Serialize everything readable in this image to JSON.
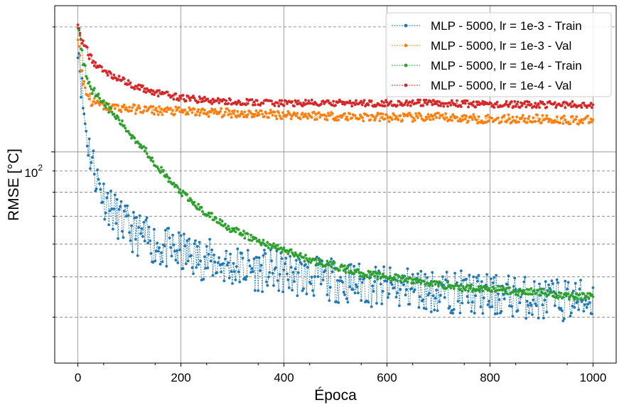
{
  "chart_data": {
    "type": "line",
    "title": "",
    "xlabel": "Época",
    "ylabel": "RMSE [°C]",
    "xlim": [
      -45,
      1045
    ],
    "ylim": [
      31,
      225
    ],
    "y_scale": "log",
    "grid": true,
    "x_ticks": [
      {
        "value": 0,
        "label": "0"
      },
      {
        "value": 200,
        "label": "200"
      },
      {
        "value": 400,
        "label": "400"
      },
      {
        "value": 600,
        "label": "600"
      },
      {
        "value": 800,
        "label": "800"
      },
      {
        "value": 1000,
        "label": "1000"
      }
    ],
    "y_major_tick": {
      "value": 100,
      "base": "10",
      "exponent": "2"
    },
    "y_minor_ticks": [
      40,
      50,
      60,
      70,
      80,
      90,
      200
    ],
    "legend_position": "top-right",
    "series": [
      {
        "name": "MLP - 5000, lr = 1e-3 - Train",
        "color": "#1f77b4",
        "x": [
          0,
          2,
          5,
          8,
          12,
          16,
          20,
          25,
          30,
          35,
          40,
          45,
          50,
          60,
          70,
          80,
          90,
          100,
          120,
          140,
          160,
          180,
          200,
          250,
          300,
          350,
          400,
          450,
          500,
          550,
          600,
          650,
          700,
          750,
          800,
          850,
          900,
          950,
          1000
        ],
        "y": [
          190,
          175,
          158,
          138,
          123,
          113,
          105,
          98,
          93,
          88,
          84,
          81,
          78,
          75,
          71,
          69,
          67,
          65,
          63,
          61,
          59,
          58,
          57,
          55,
          53,
          52,
          51,
          50,
          49,
          48,
          47,
          47,
          46,
          46,
          45,
          45,
          44,
          44,
          44
        ]
      },
      {
        "name": "MLP - 5000, lr = 1e-3 - Val",
        "color": "#ff7f0e",
        "x": [
          0,
          2,
          5,
          8,
          12,
          16,
          20,
          25,
          30,
          40,
          50,
          60,
          80,
          100,
          150,
          200,
          300,
          400,
          500,
          600,
          700,
          800,
          900,
          1000
        ],
        "y": [
          192,
          180,
          165,
          153,
          145,
          140,
          137,
          134,
          132,
          130,
          129,
          128,
          128,
          127,
          126,
          125,
          124,
          123,
          122,
          121,
          121,
          120,
          120,
          119
        ]
      },
      {
        "name": "MLP - 5000, lr = 1e-4 - Train",
        "color": "#2ca02c",
        "x": [
          0,
          5,
          10,
          20,
          30,
          40,
          50,
          60,
          80,
          100,
          125,
          150,
          175,
          200,
          225,
          250,
          300,
          350,
          400,
          450,
          500,
          550,
          600,
          650,
          700,
          750,
          800,
          850,
          900,
          950,
          1000
        ],
        "y": [
          200,
          185,
          165,
          148,
          141,
          136,
          132,
          127,
          119,
          111,
          103,
          94,
          86,
          80,
          75,
          71,
          65,
          61,
          58,
          55,
          53,
          51,
          50,
          49,
          48,
          47,
          47,
          46,
          46,
          45,
          45
        ]
      },
      {
        "name": "MLP - 5000, lr = 1e-4 - Val",
        "color": "#d62728",
        "x": [
          0,
          3,
          6,
          10,
          15,
          20,
          30,
          40,
          50,
          75,
          100,
          125,
          150,
          175,
          200,
          250,
          300,
          400,
          500,
          600,
          700,
          800,
          900,
          1000
        ],
        "y": [
          198,
          194,
          190,
          184,
          177,
          172,
          165,
          160,
          157,
          151,
          146,
          142,
          139,
          137,
          135,
          133,
          132,
          131,
          131,
          131,
          131,
          130,
          130,
          130
        ]
      }
    ]
  }
}
